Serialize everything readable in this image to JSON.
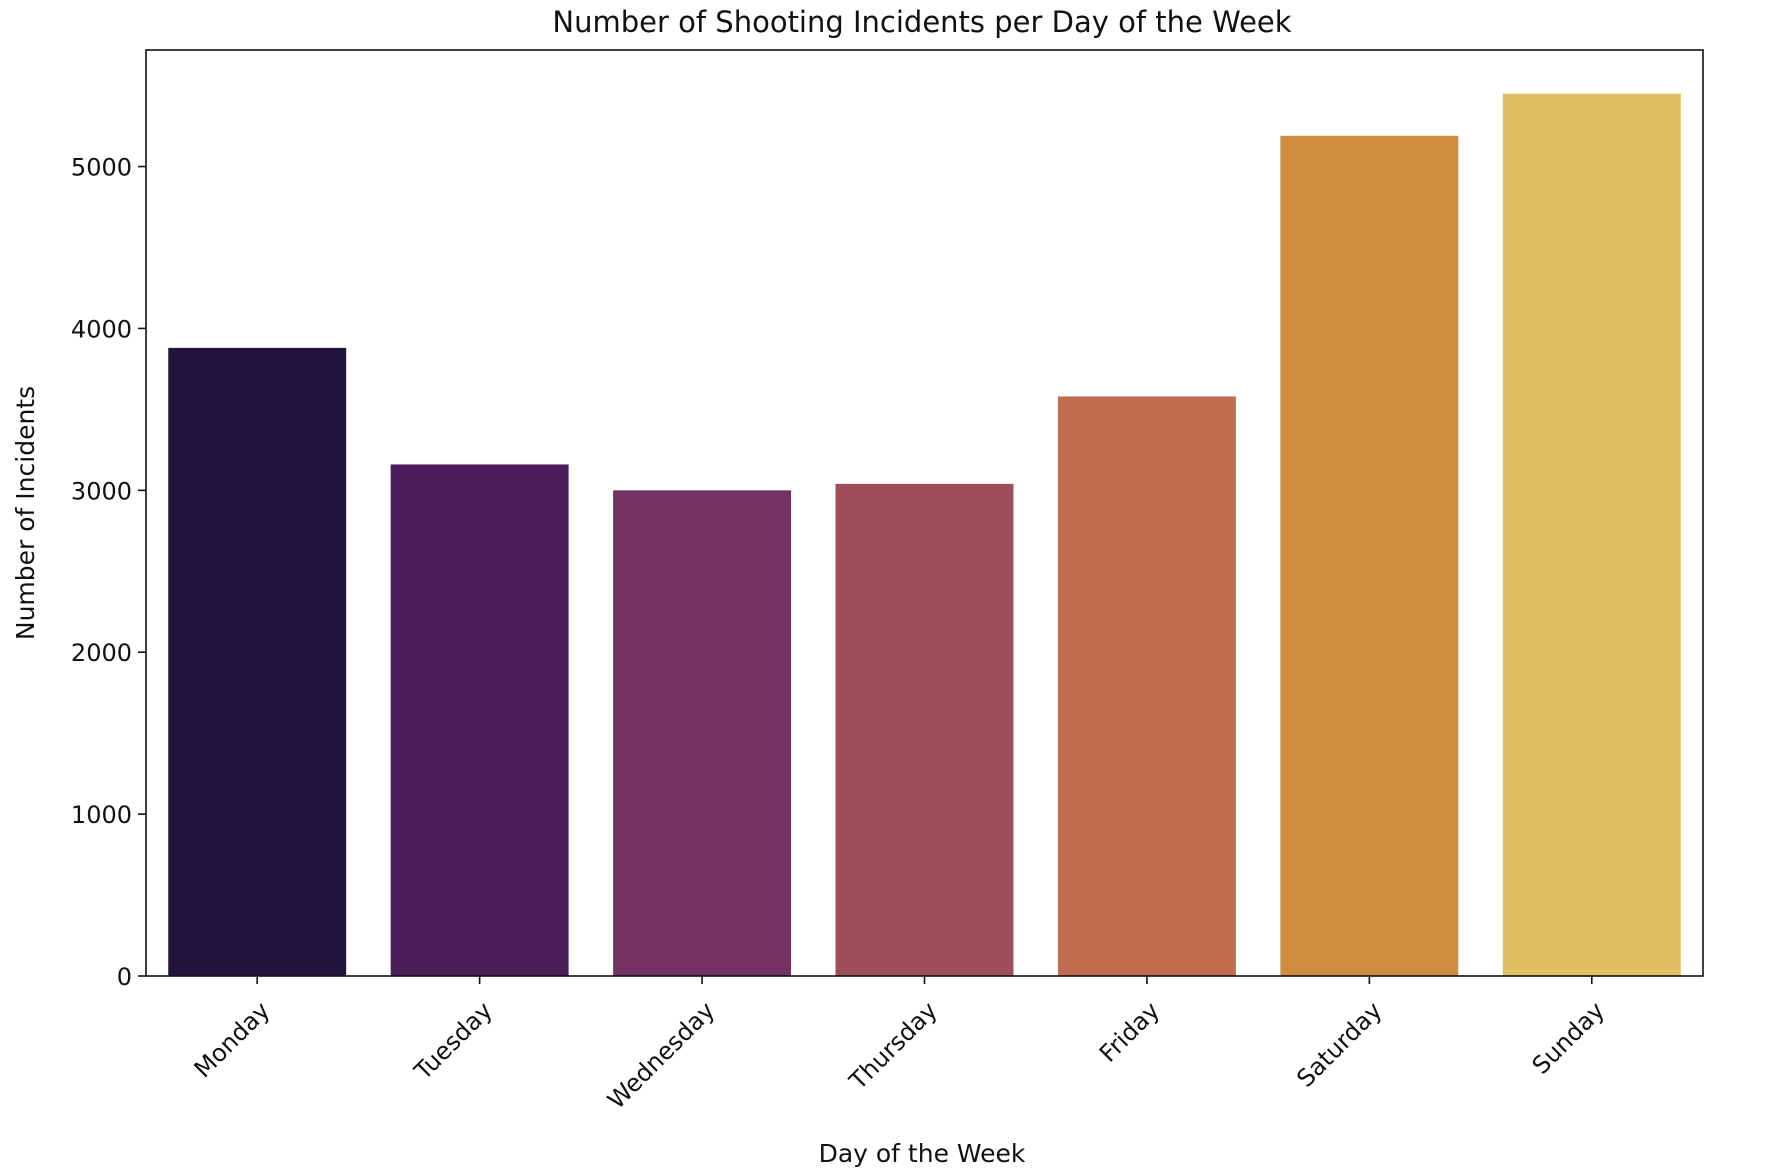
{
  "chart_data": {
    "type": "bar",
    "title": "Number of Shooting Incidents per Day of the Week",
    "xlabel": "Day of the Week",
    "ylabel": "Number of Incidents",
    "categories": [
      "Monday",
      "Tuesday",
      "Wednesday",
      "Thursday",
      "Friday",
      "Saturday",
      "Sunday"
    ],
    "values": [
      3880,
      3160,
      3000,
      3040,
      3580,
      5190,
      5450
    ],
    "colors": [
      "#21153d",
      "#4c1d5b",
      "#743263",
      "#9e4d59",
      "#c16d50",
      "#d08d3e",
      "#dfbe62"
    ],
    "ylim": [
      0,
      5720
    ],
    "yticks": [
      0,
      1000,
      2000,
      3000,
      4000,
      5000
    ],
    "grid": false,
    "legend": "none"
  }
}
